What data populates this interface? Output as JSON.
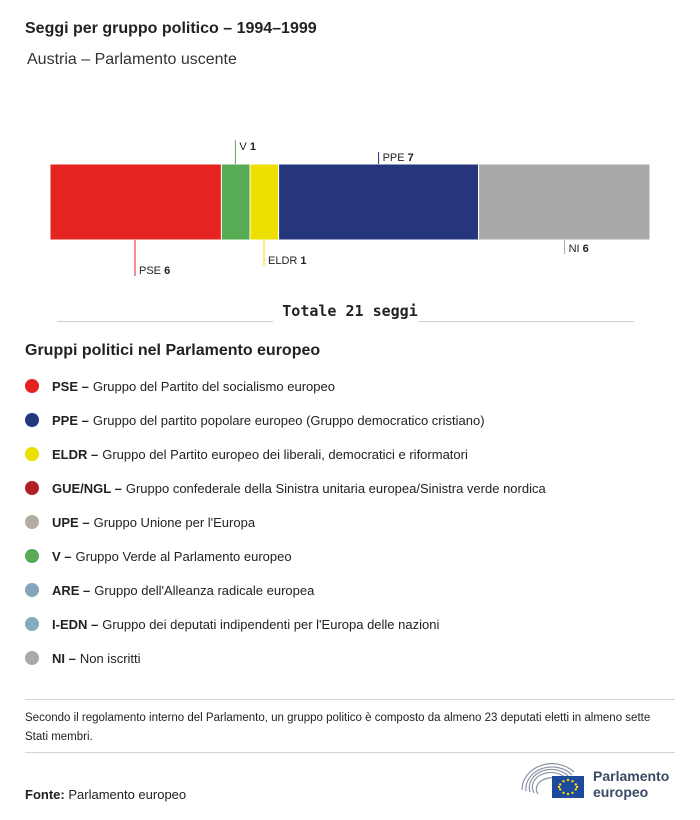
{
  "header": {
    "title": "Seggi per gruppo politico – 1994–1999",
    "subtitle": "Austria – Parlamento uscente"
  },
  "chart_data": {
    "type": "bar",
    "orientation": "horizontal-stacked",
    "categories": [
      "PSE",
      "V",
      "ELDR",
      "PPE",
      "NI"
    ],
    "values": [
      6,
      1,
      1,
      7,
      6
    ],
    "colors": [
      "#e52421",
      "#57ab52",
      "#ede000",
      "#26367d",
      "#a9a9a8"
    ],
    "label_positions": [
      "below",
      "above",
      "below",
      "above",
      "below"
    ],
    "title": "Seggi per gruppo politico – 1994–1999"
  },
  "total": {
    "text": "Totale 21 seggi"
  },
  "legend": {
    "title": "Gruppi politici nel Parlamento europeo",
    "items": [
      {
        "code": "PSE –",
        "label": "Gruppo del Partito del socialismo europeo",
        "color": "#e52421"
      },
      {
        "code": "PPE –",
        "label": "Gruppo del partito popolare europeo (Gruppo democratico cristiano)",
        "color": "#26367d"
      },
      {
        "code": "ELDR –",
        "label": "Gruppo del Partito europeo dei liberali, democratici e riformatori",
        "color": "#ede000"
      },
      {
        "code": "GUE/NGL –",
        "label": "Gruppo confederale della Sinistra unitaria europea/Sinistra verde nordica",
        "color": "#b51f24"
      },
      {
        "code": "UPE –",
        "label": "Gruppo Unione per l'Europa",
        "color": "#b3aca2"
      },
      {
        "code": "V –",
        "label": "Gruppo Verde al Parlamento europeo",
        "color": "#57ab52"
      },
      {
        "code": "ARE –",
        "label": "Gruppo dell'Alleanza radicale europea",
        "color": "#82a7ba"
      },
      {
        "code": "I-EDN –",
        "label": "Gruppo dei deputati indipendenti per l'Europa delle nazioni",
        "color": "#87abbe"
      },
      {
        "code": "NI –",
        "label": "Non iscritti",
        "color": "#a9a9a8"
      }
    ]
  },
  "note": "Secondo il regolamento interno del Parlamento, un gruppo politico è composto da almeno 23 deputati eletti in almeno sette Stati membri.",
  "source": {
    "label": "Fonte:",
    "value": "Parlamento europeo"
  },
  "logo": {
    "line1": "Parlamento",
    "line2": "europeo",
    "colors": {
      "hemicycle": "#8a94a6",
      "flag": "#1d4a9c",
      "stars": "#ffde00"
    }
  }
}
